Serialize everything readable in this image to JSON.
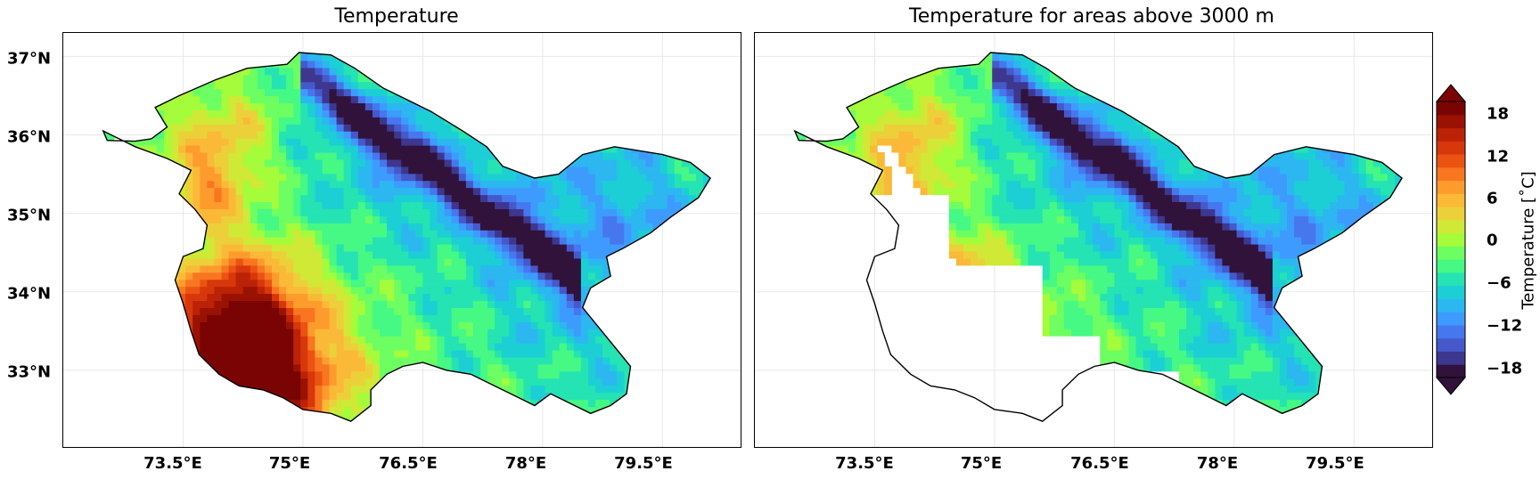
{
  "panels": [
    {
      "title": "Temperature"
    },
    {
      "title": "Temperature for areas above 3000 m"
    }
  ],
  "axes": {
    "lon_ticks": [
      "73.5°E",
      "75°E",
      "76.5°E",
      "78°E",
      "79.5°E"
    ],
    "lat_ticks": [
      "37°N",
      "36°N",
      "35°N",
      "34°N",
      "33°N"
    ],
    "lon_values": [
      73.5,
      75,
      76.5,
      78,
      79.5
    ],
    "lat_values": [
      37,
      36,
      35,
      34,
      33
    ],
    "lon_range": [
      72.0,
      80.5
    ],
    "lat_range": [
      32.0,
      37.3
    ]
  },
  "colorbar": {
    "label": "Temperature [˚C]",
    "ticks": [
      "18",
      "12",
      "6",
      "0",
      "−6",
      "−12",
      "−18"
    ],
    "tick_values": [
      18,
      12,
      6,
      0,
      -6,
      -12,
      -18
    ],
    "range": [
      -21,
      21
    ],
    "extend": "both",
    "colormap": [
      "#30123b",
      "#3e378f",
      "#4559cb",
      "#4777ef",
      "#3e9bfe",
      "#2cb7f0",
      "#1ccfd4",
      "#25e3b3",
      "#46f884",
      "#6dfe62",
      "#a4fc3b",
      "#d0e936",
      "#ecd03a",
      "#fbb938",
      "#fe9b2d",
      "#f87620",
      "#ec5313",
      "#d7370b",
      "#bc2206",
      "#9a1202",
      "#7a0403"
    ]
  },
  "chart_data": [
    {
      "type": "heatmap",
      "title": "Temperature",
      "xlabel": "",
      "ylabel": "",
      "xlim": [
        72.0,
        80.5
      ],
      "ylim": [
        32.0,
        37.3
      ],
      "x_ticks": [
        73.5,
        75,
        76.5,
        78,
        79.5
      ],
      "y_ticks": [
        33,
        34,
        35,
        36,
        37
      ],
      "units": "˚C",
      "value_range": [
        -21,
        21
      ],
      "description_of_field": "Warmest (>18 ˚C) in the south-west near 73.5–75.5°E, 32.5–33.5°N; coldest (< -18 ˚C) along the NW–SE ridge from 75.5°E 36.3°N to 77.5°E 34.5°N"
    },
    {
      "type": "heatmap",
      "title": "Temperature for areas above 3000 m",
      "xlabel": "",
      "ylabel": "",
      "xlim": [
        72.0,
        80.5
      ],
      "ylim": [
        32.0,
        37.3
      ],
      "x_ticks": [
        73.5,
        75,
        76.5,
        78,
        79.5
      ],
      "y_ticks": [
        33,
        34,
        35,
        36,
        37
      ],
      "units": "˚C",
      "value_range": [
        -21,
        21
      ],
      "masked": "areas below 3000 m left blank"
    }
  ]
}
